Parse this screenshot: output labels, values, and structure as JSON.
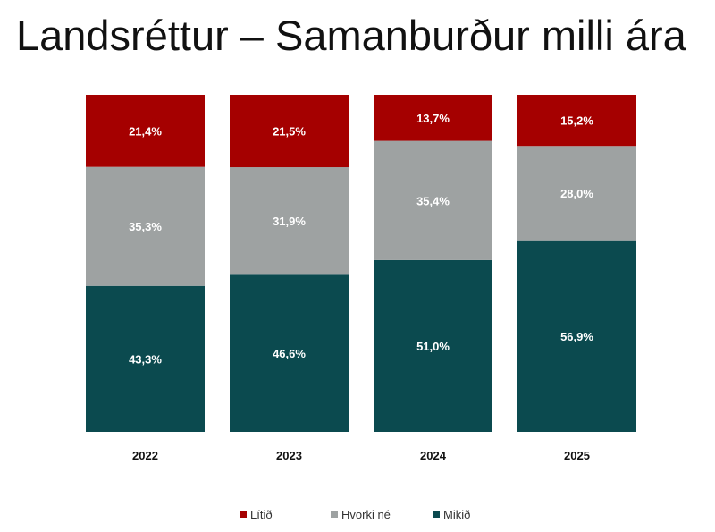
{
  "title": "Landsréttur – Samanburður milli ára",
  "chart_data": {
    "type": "bar",
    "stacked": true,
    "categories": [
      "2022",
      "2023",
      "2024",
      "2025"
    ],
    "series": [
      {
        "name": "Mikið",
        "color": "#0b4a4f",
        "values": [
          43.3,
          46.6,
          51.0,
          56.9
        ],
        "labels": [
          "43,3%",
          "46,6%",
          "51,0%",
          "56,9%"
        ]
      },
      {
        "name": "Hvorki né",
        "color": "#9ea2a2",
        "values": [
          35.3,
          31.9,
          35.4,
          28.0
        ],
        "labels": [
          "35,3%",
          "31,9%",
          "35,4%",
          "28,0%"
        ]
      },
      {
        "name": "Lítið",
        "color": "#a50000",
        "values": [
          21.4,
          21.5,
          13.7,
          15.2
        ],
        "labels": [
          "21,4%",
          "21,5%",
          "13,7%",
          "15,2%"
        ]
      }
    ],
    "legend_order": [
      "Lítið",
      "Hvorki né",
      "Mikið"
    ],
    "legend_position": "bottom",
    "ylim": [
      0,
      100
    ],
    "grid": false
  }
}
